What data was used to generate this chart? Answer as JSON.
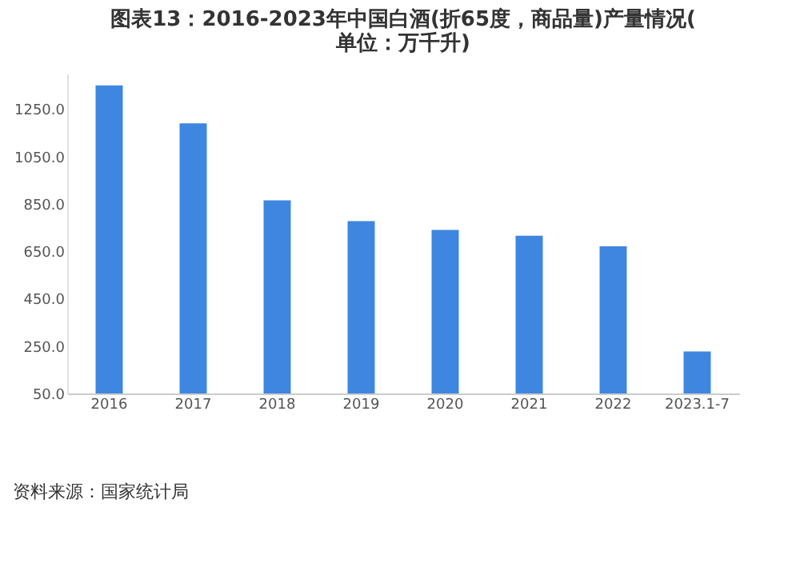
{
  "chart_data": {
    "type": "bar",
    "title": "图表13：2016-2023年中国白酒(折65度，商品量)产量情况(单位：万千升)",
    "categories": [
      "2016",
      "2017",
      "2018",
      "2019",
      "2020",
      "2021",
      "2022",
      "2023.1-7"
    ],
    "values": [
      1350,
      1190,
      865,
      777,
      740,
      716,
      671,
      227
    ],
    "color": "#3f86e0",
    "ylim": [
      50,
      1400
    ],
    "yticks": [
      {
        "value": 50,
        "label": "50.0"
      },
      {
        "value": 250,
        "label": "250.0"
      },
      {
        "value": 450,
        "label": "450.0"
      },
      {
        "value": 650,
        "label": "650.0"
      },
      {
        "value": 850,
        "label": "850.0"
      },
      {
        "value": 1050,
        "label": "1050.0"
      },
      {
        "value": 1250,
        "label": "1250.0"
      }
    ],
    "grid": false,
    "annotations": [
      "资料来源：国家统计局"
    ]
  }
}
